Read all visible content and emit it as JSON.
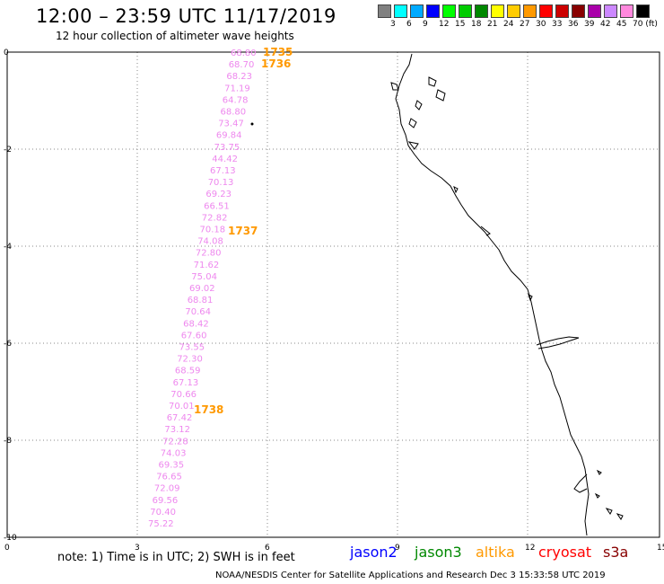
{
  "header": {
    "title": "12:00 – 23:59 UTC 11/17/2019",
    "subtitle": "12 hour collection of altimeter wave heights"
  },
  "colorbar": {
    "colors": [
      "#808080",
      "#00ffff",
      "#00aaff",
      "#0000ff",
      "#00ff00",
      "#00cc00",
      "#008800",
      "#ffff00",
      "#ffcc00",
      "#ff9900",
      "#ff0000",
      "#cc0000",
      "#880000",
      "#aa00aa",
      "#cc88ff",
      "#ff88dd",
      "#000000"
    ],
    "labels": [
      "3",
      "6",
      "9",
      "12",
      "15",
      "18",
      "21",
      "24",
      "27",
      "30",
      "33",
      "36",
      "39",
      "42",
      "45",
      "70 (ft)"
    ]
  },
  "axes": {
    "x_ticks": [
      "0",
      "3",
      "6",
      "9",
      "12",
      "15"
    ],
    "y_ticks": [
      "0",
      "-2",
      "-4",
      "-6",
      "-8",
      "-10"
    ]
  },
  "readings": {
    "color": "#ee88ee",
    "values": [
      "68.80",
      "68.70",
      "68.23",
      "71.19",
      "64.78",
      "68.80",
      "73.47",
      "69.84",
      "73.75",
      "44.42",
      "67.13",
      "70.13",
      "69.23",
      "66.51",
      "72.82",
      "70.18",
      "74.08",
      "72.80",
      "71.62",
      "75.04",
      "69.02",
      "68.81",
      "70.64",
      "68.42",
      "67.60",
      "73.55",
      "72.30",
      "68.59",
      "67.13",
      "70.66",
      "70.01",
      "67.42",
      "73.12",
      "72.28",
      "74.03",
      "69.35",
      "76.65",
      "72.09",
      "69.56",
      "70.40",
      "75.22"
    ]
  },
  "time_labels": {
    "color": "#ff9900",
    "items": [
      "1735",
      "1736",
      "1737",
      "1738"
    ]
  },
  "footer": {
    "note": "note: 1) Time is in UTC; 2) SWH is in feet",
    "satellites": [
      {
        "name": "jason2",
        "color": "#0000ff"
      },
      {
        "name": "jason3",
        "color": "#008800"
      },
      {
        "name": "altika",
        "color": "#ff9900"
      },
      {
        "name": "cryosat",
        "color": "#ff0000"
      },
      {
        "name": "s3a",
        "color": "#880000"
      }
    ],
    "credit": "NOAA/NESDIS Center for Satellite Applications and Research    Dec  3 15:33:58 UTC 2019"
  },
  "map_features": {
    "coastline_color": "#000000",
    "grid_style": "dotted"
  }
}
